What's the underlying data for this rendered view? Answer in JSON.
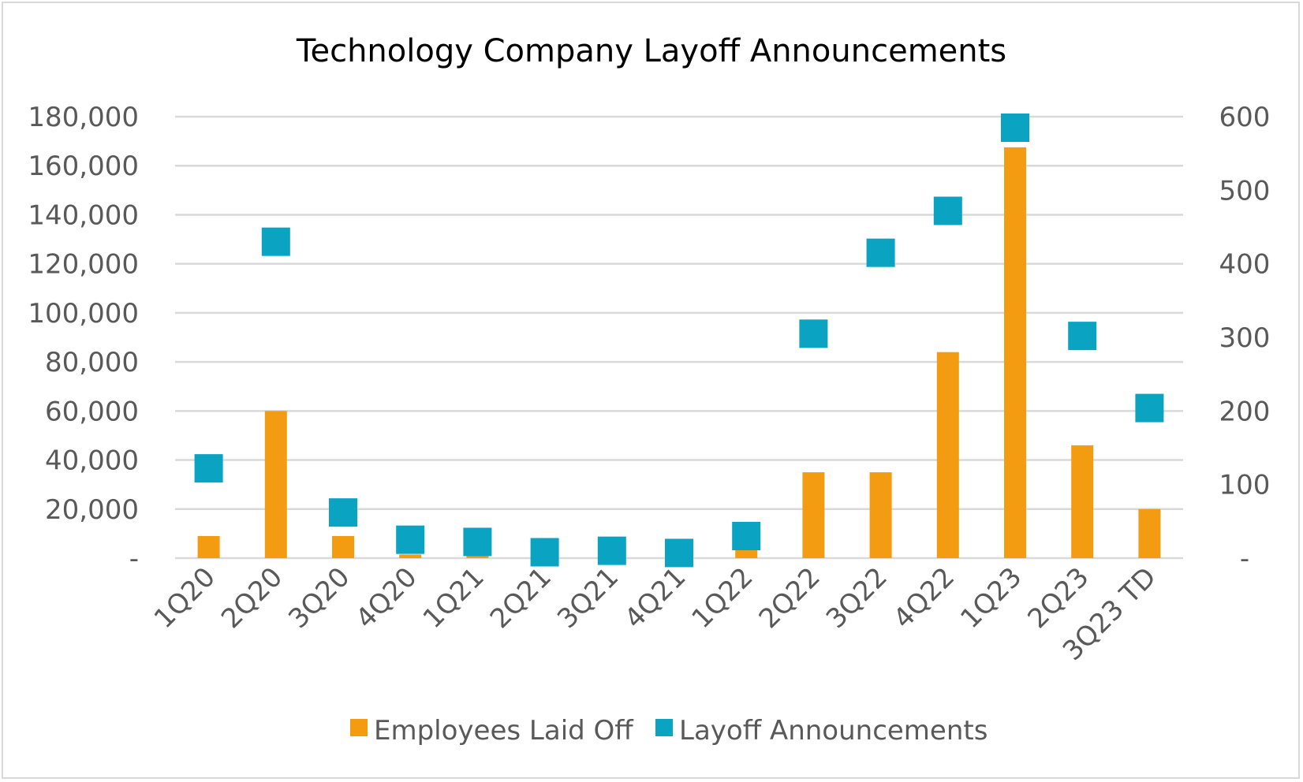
{
  "chart_data": {
    "type": "bar",
    "title": "Technology Company Layoff Announcements",
    "categories": [
      "1Q20",
      "2Q20",
      "3Q20",
      "4Q20",
      "1Q21",
      "2Q21",
      "3Q21",
      "4Q21",
      "1Q22",
      "2Q22",
      "3Q22",
      "4Q22",
      "1Q23",
      "2Q23",
      "3Q23 TD"
    ],
    "series": [
      {
        "name": "Employees Laid Off",
        "chart_type": "bar",
        "axis": "left",
        "color": "#f39c12",
        "values": [
          9000,
          60000,
          9000,
          1500,
          1000,
          500,
          500,
          400,
          4000,
          35000,
          35000,
          84000,
          167500,
          46000,
          20000
        ]
      },
      {
        "name": "Layoff Announcements",
        "chart_type": "scatter",
        "marker": "square",
        "axis": "right",
        "color": "#0aa3c2",
        "values": [
          122,
          430,
          62,
          25,
          22,
          8,
          10,
          7,
          30,
          305,
          415,
          472,
          585,
          302,
          204
        ]
      }
    ],
    "y_left": {
      "ylim": [
        0,
        180000
      ],
      "ticks": [
        0,
        20000,
        40000,
        60000,
        80000,
        100000,
        120000,
        140000,
        160000,
        180000
      ],
      "tick_labels": [
        "-",
        "20,000",
        "40,000",
        "60,000",
        "80,000",
        "100,000",
        "120,000",
        "140,000",
        "160,000",
        "180,000"
      ]
    },
    "y_right": {
      "ylim": [
        0,
        600
      ],
      "ticks": [
        0,
        100,
        200,
        300,
        400,
        500,
        600
      ],
      "tick_labels": [
        "-",
        "100",
        "200",
        "300",
        "400",
        "500",
        "600"
      ]
    },
    "grid": true,
    "legend": "bottom"
  }
}
